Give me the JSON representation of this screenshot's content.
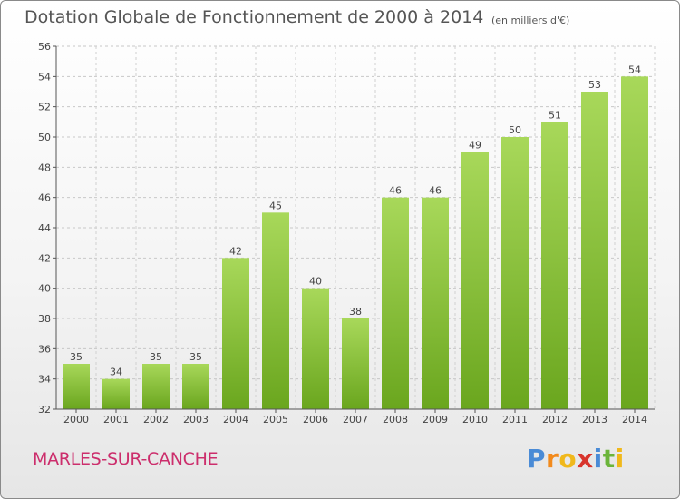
{
  "chart_data": {
    "type": "bar",
    "title": "Dotation Globale de Fonctionnement de 2000 à 2014",
    "subtitle": "(en milliers d'€)",
    "categories": [
      "2000",
      "2001",
      "2002",
      "2003",
      "2004",
      "2005",
      "2006",
      "2007",
      "2008",
      "2009",
      "2010",
      "2011",
      "2012",
      "2013",
      "2014"
    ],
    "values": [
      35,
      34,
      35,
      35,
      42,
      45,
      40,
      38,
      46,
      46,
      49,
      50,
      51,
      53,
      54
    ],
    "ylim": [
      32,
      56
    ],
    "yticks": [
      32,
      34,
      36,
      38,
      40,
      42,
      44,
      46,
      48,
      50,
      52,
      54,
      56
    ],
    "grid": true,
    "bar_color_top": "#a8d85a",
    "bar_color_bottom": "#6aa61e"
  },
  "footer": {
    "place": "MARLES-SUR-CANCHE",
    "logo_letters": [
      "P",
      "r",
      "o",
      "x",
      "i",
      "t",
      "i"
    ],
    "logo_colors": [
      "#4a8bd6",
      "#f28a1c",
      "#f0b81c",
      "#d8342c",
      "#6bb43a"
    ]
  }
}
